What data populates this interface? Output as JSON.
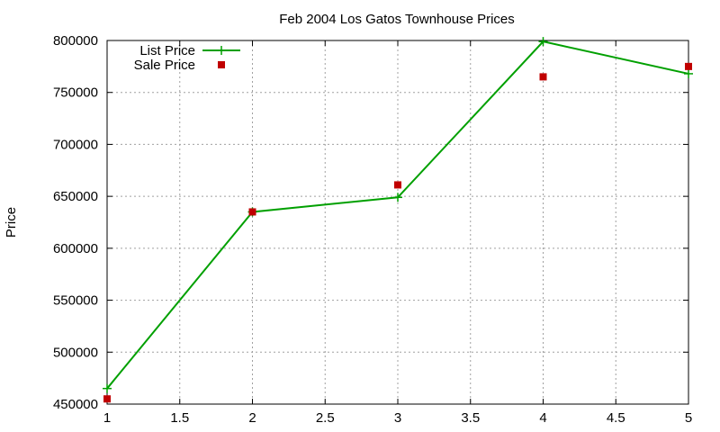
{
  "chart_data": {
    "type": "line",
    "title": "Feb 2004 Los Gatos Townhouse Prices",
    "xlabel": "",
    "ylabel": "Price",
    "xlim": [
      1,
      5
    ],
    "ylim": [
      450000,
      800000
    ],
    "xticks": [
      1,
      1.5,
      2,
      2.5,
      3,
      3.5,
      4,
      4.5,
      5
    ],
    "yticks": [
      450000,
      500000,
      550000,
      600000,
      650000,
      700000,
      750000,
      800000
    ],
    "grid": true,
    "legend_position": "top-left",
    "series": [
      {
        "name": "List Price",
        "style": "linespoints",
        "marker": "plus",
        "color": "#00a000",
        "x": [
          1,
          2,
          3,
          4,
          5
        ],
        "y": [
          465000,
          635000,
          649000,
          799000,
          768000
        ]
      },
      {
        "name": "Sale Price",
        "style": "points",
        "marker": "square",
        "color": "#c00000",
        "x": [
          1,
          2,
          3,
          4,
          5
        ],
        "y": [
          455000,
          635000,
          661000,
          765000,
          775000
        ]
      }
    ]
  }
}
